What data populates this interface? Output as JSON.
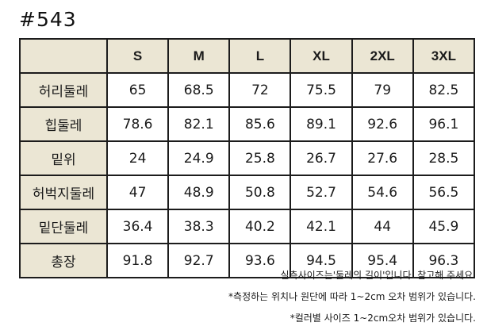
{
  "product_code": "#543",
  "table": {
    "headers": [
      "",
      "S",
      "M",
      "L",
      "XL",
      "2XL",
      "3XL"
    ],
    "rows": [
      {
        "label": "허리둘레",
        "values": [
          "65",
          "68.5",
          "72",
          "75.5",
          "79",
          "82.5"
        ]
      },
      {
        "label": "힙둘레",
        "values": [
          "78.6",
          "82.1",
          "85.6",
          "89.1",
          "92.6",
          "96.1"
        ]
      },
      {
        "label": "밑위",
        "values": [
          "24",
          "24.9",
          "25.8",
          "26.7",
          "27.6",
          "28.5"
        ]
      },
      {
        "label": "허벅지둘레",
        "values": [
          "47",
          "48.9",
          "50.8",
          "52.7",
          "54.6",
          "56.5"
        ]
      },
      {
        "label": "밑단둘레",
        "values": [
          "36.4",
          "38.3",
          "40.2",
          "42.1",
          "44",
          "45.9"
        ]
      },
      {
        "label": "총장",
        "values": [
          "91.8",
          "92.7",
          "93.6",
          "94.5",
          "95.4",
          "96.3"
        ]
      }
    ]
  },
  "notes": [
    "실측사이즈는'둘레의 길이'입니다. 참고해 주세요.",
    "*측정하는 위치나 원단에 따라 1~2cm 오차 범위가 있습니다.",
    "*컬러별 사이즈 1~2cm오차 범위가 있습니다."
  ],
  "colors": {
    "header_fill": "#ebe6d4",
    "border": "#1c1c1c"
  }
}
